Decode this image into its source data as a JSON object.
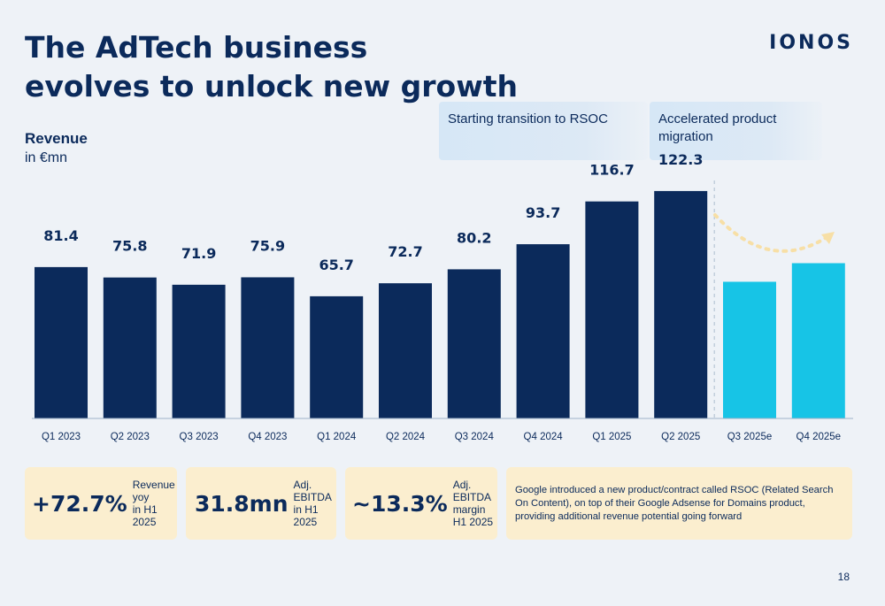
{
  "header": {
    "title": "The AdTech business\nevolves to unlock new growth",
    "logo": "IONOS"
  },
  "chart_data": {
    "type": "bar",
    "ylabel": "Revenue",
    "yunit": "in €mn",
    "categories": [
      "Q1 2023",
      "Q2 2023",
      "Q3 2023",
      "Q4 2023",
      "Q1 2024",
      "Q2 2024",
      "Q3 2024",
      "Q4 2024",
      "Q1 2025",
      "Q2 2025",
      "Q3 2025e",
      "Q4 2025e"
    ],
    "values": [
      81.4,
      75.8,
      71.9,
      75.9,
      65.7,
      72.7,
      80.2,
      93.7,
      116.7,
      122.3,
      73.5,
      83.5
    ],
    "data_labels": [
      "81.4",
      "75.8",
      "71.9",
      "75.9",
      "65.7",
      "72.7",
      "80.2",
      "93.7",
      "116.7",
      "122.3",
      "",
      ""
    ],
    "estimate_flags": [
      false,
      false,
      false,
      false,
      false,
      false,
      false,
      false,
      false,
      false,
      true,
      true
    ],
    "colors": {
      "actual": "#0b2a5b",
      "estimate": "#17c4e6",
      "arrow": "#f7dfa6",
      "axis": "#9fb3c8"
    },
    "grid": false,
    "legend": "none",
    "annotations": [
      {
        "text": "Starting transition to RSOC",
        "from_category": "Q3 2024"
      },
      {
        "text": "Accelerated product migration",
        "from_category": "Q2 2025"
      }
    ]
  },
  "kpis": [
    {
      "value": "+72.7%",
      "label": "Revenue yoy\nin H1 2025"
    },
    {
      "value": "31.8mn",
      "label": "Adj. EBITDA\nin H1 2025"
    },
    {
      "value": "~13.3%",
      "label": "Adj. EBITDA\nmargin H1 2025"
    }
  ],
  "note": "Google introduced a new product/contract called RSOC (Related Search On Content), on top of their Google Adsense for Domains product, providing additional revenue potential going forward",
  "page_number": "18"
}
